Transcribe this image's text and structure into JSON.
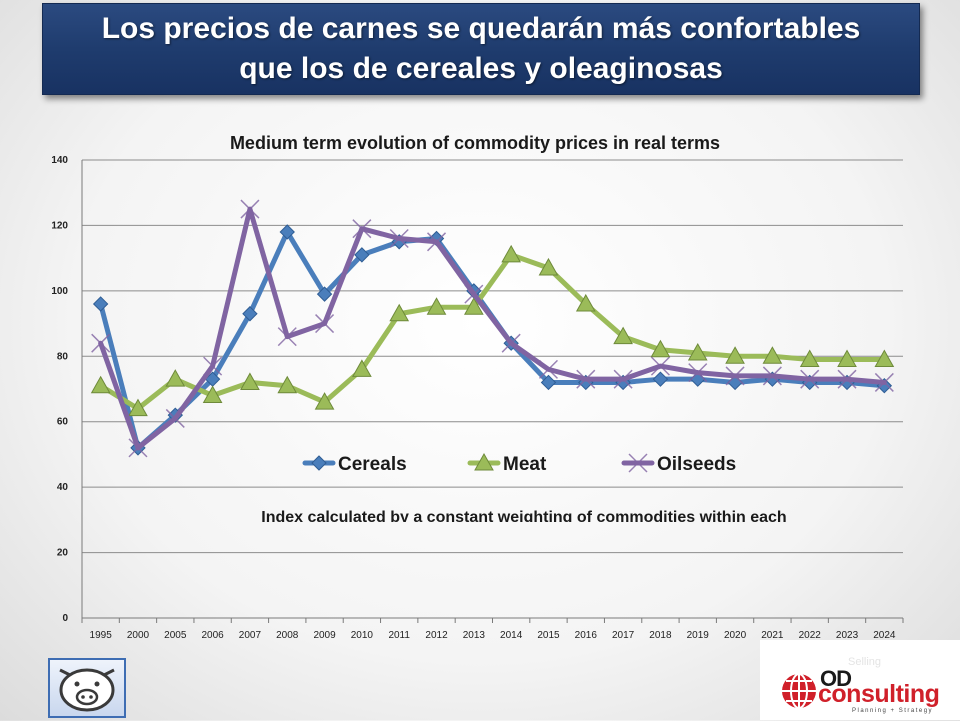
{
  "slide": {
    "title_line1": "Los precios de carnes se quedarán más confortables",
    "title_line2": "que los de cereales y oleaginosas"
  },
  "chart_data": {
    "type": "line",
    "title": "Medium term evolution of commodity prices in real terms",
    "annotation": "Index calculated by a constant weighting of commodities within each",
    "categories": [
      "1995",
      "2000",
      "2005",
      "2006",
      "2007",
      "2008",
      "2009",
      "2010",
      "2011",
      "2012",
      "2013",
      "2014",
      "2015",
      "2016",
      "2017",
      "2018",
      "2019",
      "2020",
      "2021",
      "2022",
      "2023",
      "2024"
    ],
    "ylim": [
      0,
      140
    ],
    "yticks": [
      0,
      20,
      40,
      60,
      80,
      100,
      120,
      140
    ],
    "grid": true,
    "legend_position": "middle",
    "series": [
      {
        "name": "Cereals",
        "color": "#4a7ebb",
        "marker": "diamond",
        "values": [
          96,
          52,
          62,
          73,
          93,
          118,
          99,
          111,
          115,
          116,
          100,
          84,
          72,
          72,
          72,
          73,
          73,
          72,
          73,
          72,
          72,
          71
        ]
      },
      {
        "name": "Meat",
        "color": "#9bbb59",
        "marker": "triangle",
        "values": [
          71,
          64,
          73,
          68,
          72,
          71,
          66,
          76,
          93,
          95,
          95,
          111,
          107,
          96,
          86,
          82,
          81,
          80,
          80,
          79,
          79,
          79
        ]
      },
      {
        "name": "Oilseeds",
        "color": "#8064a2",
        "marker": "x",
        "values": [
          84,
          52,
          61,
          77,
          125,
          86,
          90,
          119,
          116,
          115,
          99,
          84,
          76,
          73,
          73,
          77,
          75,
          74,
          74,
          73,
          73,
          72
        ]
      }
    ]
  },
  "logos": {
    "left_icon": "pig-face-icon",
    "od_text": "OD",
    "consulting_text": "consulting",
    "tagline": "Planning + Strategy",
    "faint_text": "Selling"
  }
}
